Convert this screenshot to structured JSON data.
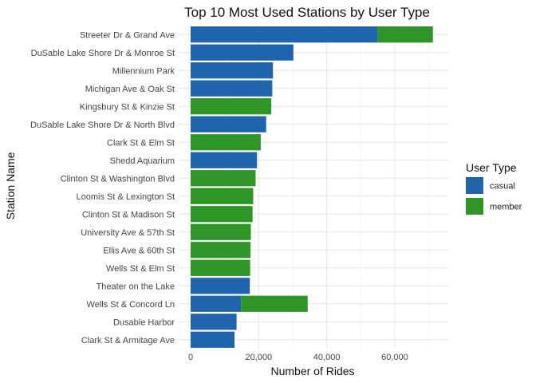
{
  "chart_data": {
    "type": "bar",
    "orientation": "horizontal",
    "stacked": true,
    "title": "Top 10 Most Used Stations by User Type",
    "xlabel": "Number of Rides",
    "ylabel": "Station Name",
    "xlim": [
      0,
      75000
    ],
    "x_ticks": [
      0,
      20000,
      40000,
      60000
    ],
    "x_tick_labels": [
      "0",
      "20,000",
      "40,000",
      "60,000"
    ],
    "grid": true,
    "legend": {
      "title": "User Type",
      "position": "right"
    },
    "categories": [
      "Streeter Dr & Grand Ave",
      "DuSable Lake Shore Dr & Monroe St",
      "Millennium Park",
      "Michigan Ave & Oak St",
      "Kingsbury St & Kinzie St",
      "DuSable Lake Shore Dr & North Blvd",
      "Clark St & Elm St",
      "Shedd Aquarium",
      "Clinton St & Washington Blvd",
      "Loomis St & Lexington St",
      "Clinton St & Madison St",
      "University Ave & 57th St",
      "Ellis Ave & 60th St",
      "Wells St & Elm St",
      "Theater on the Lake",
      "Wells St & Concord Ln",
      "Dusable Harbor",
      "Clark St & Armitage Ave"
    ],
    "series": [
      {
        "name": "casual",
        "color": "#1f65ad",
        "values": [
          55000,
          30200,
          24200,
          24000,
          0,
          22200,
          0,
          19500,
          0,
          0,
          0,
          0,
          0,
          0,
          17400,
          14800,
          13500,
          12900
        ]
      },
      {
        "name": "member",
        "color": "#2e9626",
        "values": [
          16200,
          0,
          0,
          0,
          23700,
          0,
          20600,
          0,
          19100,
          18400,
          18200,
          17700,
          17600,
          17500,
          0,
          19600,
          0,
          0
        ]
      }
    ]
  }
}
